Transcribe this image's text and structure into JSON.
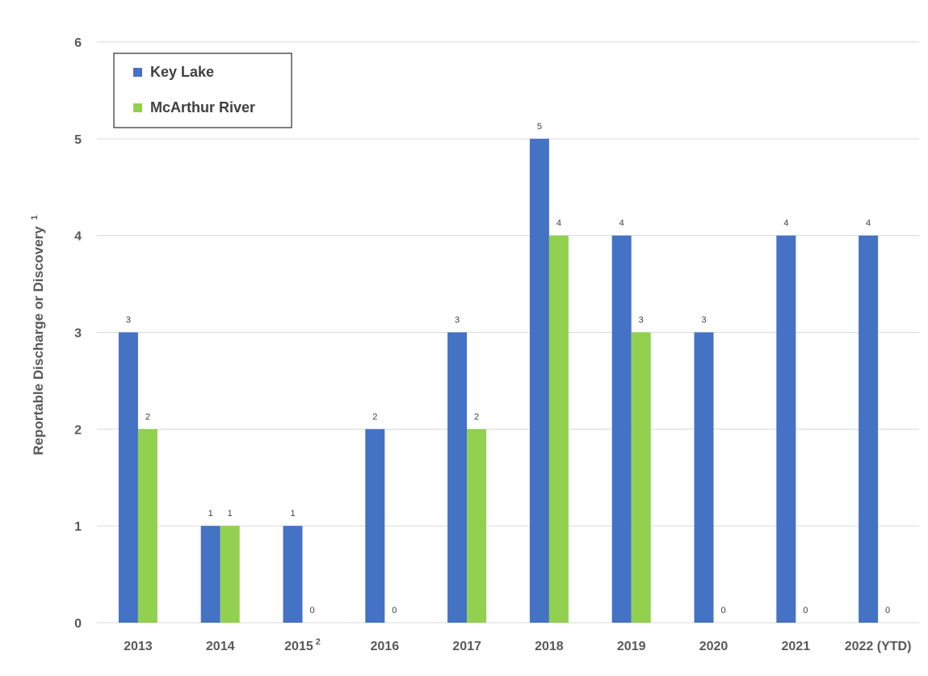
{
  "chart_data": {
    "type": "bar",
    "categories": [
      "2013",
      "2014",
      "2015",
      "2016",
      "2017",
      "2018",
      "2019",
      "2020",
      "2021",
      "2022 (YTD)"
    ],
    "category_footnotes": [
      "",
      "",
      "2",
      "",
      "",
      "",
      "",
      "",
      "",
      ""
    ],
    "series": [
      {
        "name": "Key Lake",
        "color": "#4472C4",
        "values": [
          3,
          1,
          1,
          2,
          3,
          5,
          4,
          3,
          4,
          4
        ]
      },
      {
        "name": "McArthur River",
        "color": "#92D050",
        "values": [
          2,
          1,
          0,
          0,
          2,
          4,
          3,
          0,
          0,
          0
        ]
      }
    ],
    "title": "",
    "xlabel": "",
    "ylabel": "Reportable Discharge or Discovery",
    "ylabel_footnote": "1",
    "ylim": [
      0,
      6
    ],
    "yticks": [
      0,
      1,
      2,
      3,
      4,
      5,
      6
    ],
    "grid": true,
    "legend_position": "top-left",
    "data_labels": true
  }
}
